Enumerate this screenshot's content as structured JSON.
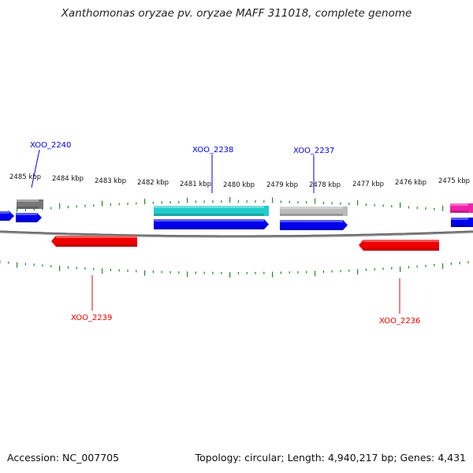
{
  "title": "Xanthomonas oryzae pv. oryzae MAFF 311018, complete genome",
  "footer": {
    "accession": "Accession: NC_007705",
    "summary": "Topology: circular; Length: 4,940,217 bp; Genes: 4,431"
  },
  "colors": {
    "blue": "#0000ee",
    "red": "#ee0000",
    "cyan": "#22cccc",
    "gray": "#777777",
    "light_gray": "#bbbbbb",
    "magenta": "#ee22aa",
    "tick_green": "#228822",
    "backbone": "#888888"
  },
  "scale_labels": [
    "2485 kbp",
    "2484 kbp",
    "2483 kbp",
    "2482 kbp",
    "2481 kbp",
    "2480 kbp",
    "2479 kbp",
    "2478 kbp",
    "2477 kbp",
    "2476 kbp",
    "2475 kbp"
  ],
  "gene_labels": [
    {
      "id": "xoo-2240",
      "text": "XOO_2240",
      "color": "blue"
    },
    {
      "id": "xoo-2238",
      "text": "XOO_2238",
      "color": "blue"
    },
    {
      "id": "xoo-2237",
      "text": "XOO_2237",
      "color": "blue"
    },
    {
      "id": "xoo-2239",
      "text": "XOO_2239",
      "color": "red"
    },
    {
      "id": "xoo-2236",
      "text": "XOO_2236",
      "color": "red"
    }
  ]
}
